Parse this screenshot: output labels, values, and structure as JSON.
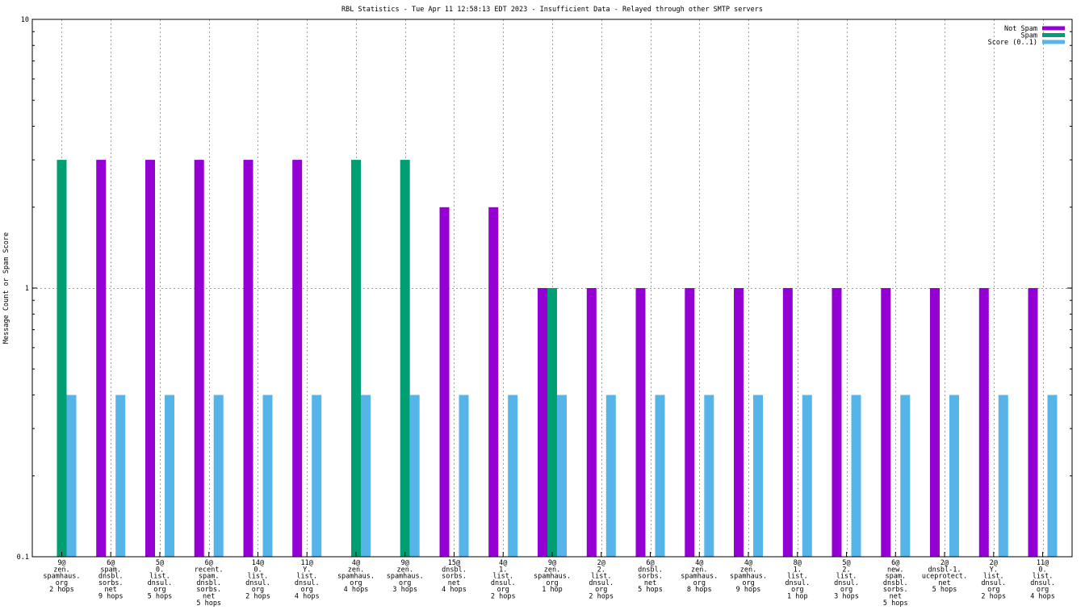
{
  "chart_data": {
    "type": "bar",
    "title": "RBL Statistics - Tue Apr 11 12:58:13 EDT 2023 - Insufficient Data - Relayed through other SMTP servers",
    "ylabel": "Message Count or Spam Score",
    "yscale": "log",
    "ylim": [
      0.1,
      10
    ],
    "yticks": [
      "0.1",
      "1",
      "10"
    ],
    "grid": true,
    "legend_position": "top-right",
    "categories": [
      [
        "9@",
        "zen.",
        "spamhaus.",
        "org",
        "2 hops"
      ],
      [
        "6@",
        "spam.",
        "dnsbl.",
        "sorbs.",
        "net",
        "9 hops"
      ],
      [
        "5@",
        "0.",
        "list.",
        "dnsul.",
        "org",
        "5 hops"
      ],
      [
        "6@",
        "recent.",
        "spam.",
        "dnsbl.",
        "sorbs.",
        "net",
        "5 hops"
      ],
      [
        "14@",
        "0.",
        "list.",
        "dnsul.",
        "org",
        "2 hops"
      ],
      [
        "11@",
        "Y.",
        "list.",
        "dnsul.",
        "org",
        "4 hops"
      ],
      [
        "4@",
        "zen.",
        "spamhaus.",
        "org",
        "4 hops"
      ],
      [
        "9@",
        "zen.",
        "spamhaus.",
        "org",
        "3 hops"
      ],
      [
        "15@",
        "dnsbl.",
        "sorbs.",
        "net",
        "4 hops"
      ],
      [
        "4@",
        "1.",
        "list.",
        "dnsul.",
        "org",
        "2 hops"
      ],
      [
        "9@",
        "zen.",
        "spamhaus.",
        "org",
        "1 hop"
      ],
      [
        "2@",
        "2.",
        "list.",
        "dnsul.",
        "org",
        "2 hops"
      ],
      [
        "6@",
        "dnsbl.",
        "sorbs.",
        "net",
        "5 hops"
      ],
      [
        "4@",
        "zen.",
        "spamhaus.",
        "org",
        "8 hops"
      ],
      [
        "4@",
        "zen.",
        "spamhaus.",
        "org",
        "9 hops"
      ],
      [
        "8@",
        "1.",
        "list.",
        "dnsul.",
        "org",
        "1 hop"
      ],
      [
        "5@",
        "2.",
        "list.",
        "dnsul.",
        "org",
        "3 hops"
      ],
      [
        "6@",
        "new.",
        "spam.",
        "dnsbl.",
        "sorbs.",
        "net",
        "5 hops"
      ],
      [
        "2@",
        "dnsbl-1.",
        "uceprotect.",
        "net",
        "5 hops"
      ],
      [
        "2@",
        "Y.",
        "list.",
        "dnsul.",
        "org",
        "2 hops"
      ],
      [
        "11@",
        "0.",
        "list.",
        "dnsul.",
        "org",
        "4 hops"
      ]
    ],
    "series": [
      {
        "name": "Not Spam",
        "color": "#9400d3",
        "values": [
          0,
          3,
          3,
          3,
          3,
          3,
          0,
          0,
          2,
          2,
          1,
          1,
          1,
          1,
          1,
          1,
          1,
          1,
          1,
          1,
          1
        ]
      },
      {
        "name": "Spam",
        "color": "#009e73",
        "values": [
          3,
          0,
          0,
          0,
          0,
          0,
          3,
          3,
          0,
          0,
          1,
          0,
          0,
          0,
          0,
          0,
          0,
          0,
          0,
          0,
          0
        ]
      },
      {
        "name": "Score (0..1)",
        "color": "#56b4e9",
        "values": [
          0.4,
          0.4,
          0.4,
          0.4,
          0.4,
          0.4,
          0.4,
          0.4,
          0.4,
          0.4,
          0.4,
          0.4,
          0.4,
          0.4,
          0.4,
          0.4,
          0.4,
          0.4,
          0.4,
          0.4,
          0.4
        ]
      }
    ]
  }
}
